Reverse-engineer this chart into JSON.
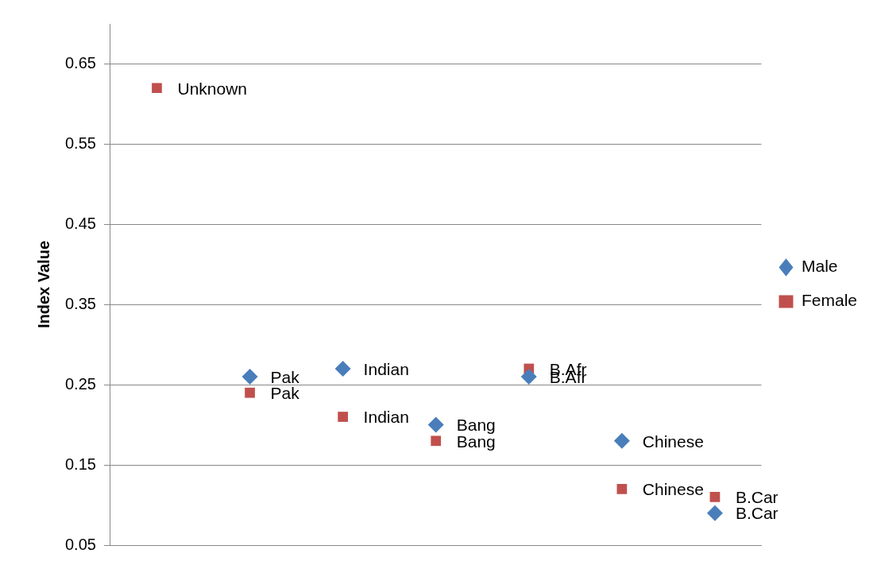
{
  "chart_data": {
    "type": "scatter",
    "ylabel": "Index Value",
    "categories": [
      null,
      null,
      null,
      null,
      null,
      null,
      null
    ],
    "series": [
      {
        "name": "Male",
        "color": "#4a7ebb",
        "marker": "diamond",
        "values": [
          null,
          0.26,
          0.27,
          0.2,
          0.26,
          0.18,
          0.09
        ],
        "value_labels": [
          null,
          "Pak",
          "Indian",
          "Bang",
          "B.Afr",
          "Chinese",
          "B.Car"
        ]
      },
      {
        "name": "Female",
        "color": "#c0504d",
        "marker": "square",
        "values": [
          0.62,
          0.24,
          0.21,
          0.18,
          0.27,
          0.12,
          0.11
        ],
        "value_labels": [
          "Unknown",
          "Pak",
          "Indian",
          "Bang",
          "B.Afr",
          "Chinese",
          "B.Car"
        ]
      }
    ],
    "ylim": [
      0.05,
      0.7
    ],
    "yticks": [
      0.05,
      0.15,
      0.25,
      0.35,
      0.45,
      0.55,
      0.65
    ],
    "grid": "y",
    "legend": "right",
    "tick_labels": "y"
  }
}
